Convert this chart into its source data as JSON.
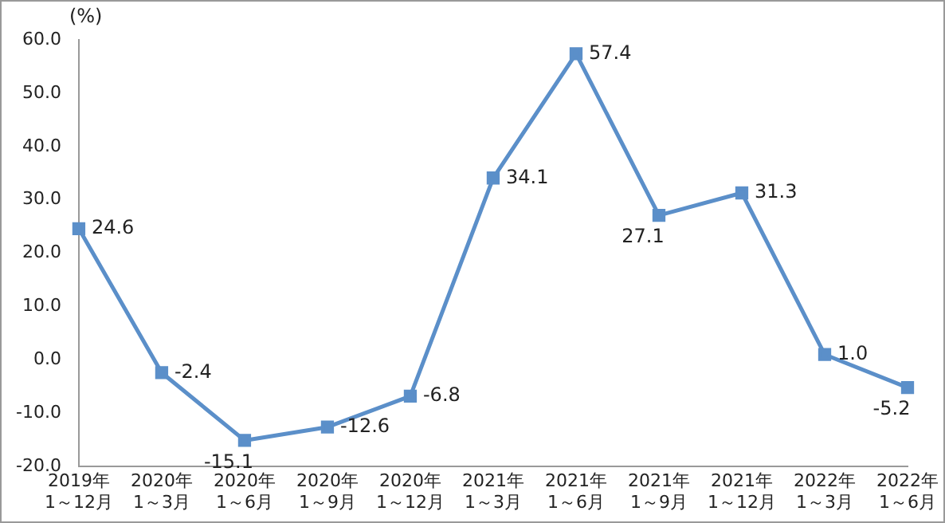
{
  "chart_data": {
    "type": "line",
    "ylabel": "(%)",
    "categories": [
      "2019年\n1～12月",
      "2020年\n1～3月",
      "2020年\n1～6月",
      "2020年\n1～9月",
      "2020年\n1～12月",
      "2021年\n1～3月",
      "2021年\n1～6月",
      "2021年\n1～9月",
      "2021年\n1～12月",
      "2022年\n1～3月",
      "2022年\n1～6月"
    ],
    "series": [
      {
        "color": "#5b8fc9",
        "values": [
          24.6,
          -2.4,
          -15.1,
          -12.6,
          -6.8,
          34.1,
          57.4,
          27.1,
          31.3,
          1.0,
          -5.2
        ],
        "value_labels": [
          "24.6",
          "-2.4",
          "-15.1",
          "-12.6",
          "-6.8",
          "34.1",
          "57.4",
          "27.1",
          "31.3",
          "1.0",
          "-5.2"
        ]
      }
    ],
    "ylim": [
      -20,
      60
    ],
    "yticks": [
      {
        "value": -20,
        "label": "-20.0"
      },
      {
        "value": -10,
        "label": "-10.0"
      },
      {
        "value": 0,
        "label": "0.0"
      },
      {
        "value": 10,
        "label": "10.0"
      },
      {
        "value": 20,
        "label": "20.0"
      },
      {
        "value": 30,
        "label": "30.0"
      },
      {
        "value": 40,
        "label": "40.0"
      },
      {
        "value": 50,
        "label": "50.0"
      },
      {
        "value": 60,
        "label": "60.0"
      }
    ],
    "grid": false,
    "legend": false,
    "marker": "square",
    "line_style": "solid"
  }
}
